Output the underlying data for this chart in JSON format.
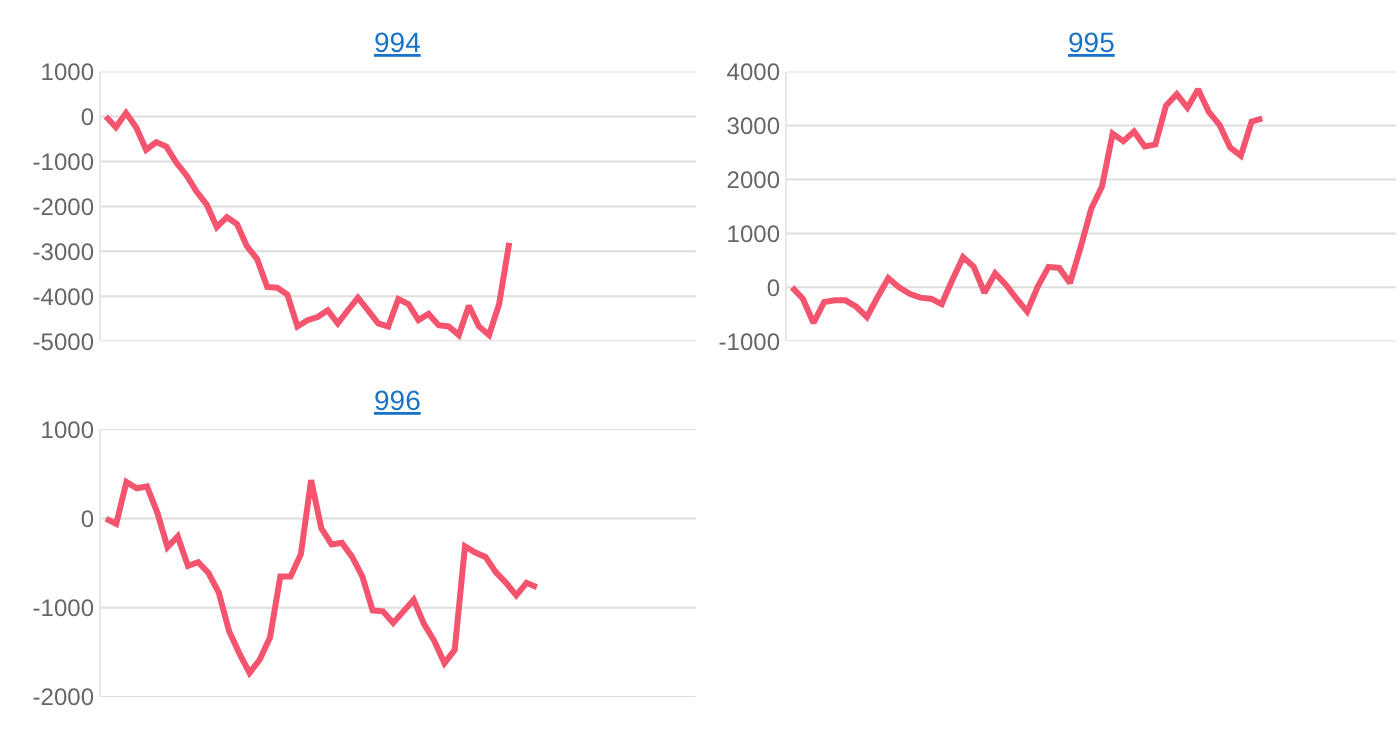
{
  "chart_data": [
    {
      "type": "line",
      "title": "994",
      "categories": [
        null,
        null,
        null,
        null,
        null,
        null,
        null,
        null,
        null,
        null,
        null,
        null,
        null,
        null,
        null,
        null,
        null,
        null,
        null,
        null,
        null,
        null,
        null,
        null,
        null,
        null,
        null,
        null,
        null,
        null,
        null,
        null,
        null,
        null,
        null,
        null,
        null,
        null,
        null,
        null,
        null,
        null,
        null,
        null,
        null,
        null,
        null,
        null,
        null,
        null,
        null,
        null,
        null,
        null,
        null,
        null,
        null,
        null,
        null
      ],
      "series": [
        {
          "color": "#f5546e",
          "values": [
            0,
            -240,
            80,
            -240,
            -740,
            -570,
            -670,
            -1030,
            -1310,
            -1670,
            -1960,
            -2460,
            -2240,
            -2390,
            -2890,
            -3170,
            -3790,
            -3810,
            -3960,
            -4670,
            -4530,
            -4460,
            -4310,
            -4600,
            -4310,
            -4030,
            -4310,
            -4600,
            -4670,
            -4060,
            -4170,
            -4530,
            -4390,
            -4640,
            -4670,
            -4860,
            -4210,
            -4670,
            -4860,
            -4170,
            -2810,
            null,
            null,
            null,
            null,
            null,
            null,
            null,
            null,
            null,
            null,
            null,
            null,
            null,
            null,
            null,
            null,
            null,
            null
          ]
        }
      ],
      "ylim": [
        -5000,
        1000
      ],
      "yticks": [
        -5000,
        -4000,
        -3000,
        -2000,
        -1000,
        0,
        1000
      ],
      "grid": "y",
      "marker": "none",
      "line_style": "solid",
      "tick_labels": "y"
    },
    {
      "type": "line",
      "title": "995",
      "categories": [
        null,
        null,
        null,
        null,
        null,
        null,
        null,
        null,
        null,
        null,
        null,
        null,
        null,
        null,
        null,
        null,
        null,
        null,
        null,
        null,
        null,
        null,
        null,
        null,
        null,
        null,
        null,
        null,
        null,
        null,
        null,
        null,
        null,
        null,
        null,
        null,
        null,
        null,
        null,
        null,
        null,
        null,
        null,
        null,
        null,
        null,
        null,
        null,
        null,
        null,
        null,
        null,
        null,
        null,
        null,
        null,
        null
      ],
      "series": [
        {
          "color": "#f5546e",
          "values": [
            0,
            -210,
            -660,
            -270,
            -240,
            -240,
            -360,
            -550,
            -180,
            170,
            0,
            -120,
            -190,
            -210,
            -310,
            140,
            560,
            380,
            -100,
            260,
            50,
            -210,
            -450,
            20,
            380,
            360,
            80,
            740,
            1460,
            1870,
            2850,
            2710,
            2890,
            2610,
            2650,
            3370,
            3580,
            3330,
            3670,
            3250,
            3010,
            2590,
            2440,
            3070,
            3130,
            null,
            null,
            null,
            null,
            null,
            null,
            null,
            null,
            null,
            null,
            null,
            null
          ]
        }
      ],
      "ylim": [
        -1000,
        4000
      ],
      "yticks": [
        -1000,
        0,
        1000,
        2000,
        3000,
        4000
      ],
      "grid": "y",
      "marker": "none",
      "line_style": "solid",
      "tick_labels": "y"
    },
    {
      "type": "line",
      "title": "996",
      "categories": [
        null,
        null,
        null,
        null,
        null,
        null,
        null,
        null,
        null,
        null,
        null,
        null,
        null,
        null,
        null,
        null,
        null,
        null,
        null,
        null,
        null,
        null,
        null,
        null,
        null,
        null,
        null,
        null,
        null,
        null,
        null,
        null,
        null,
        null,
        null,
        null,
        null,
        null,
        null,
        null,
        null,
        null,
        null,
        null,
        null,
        null,
        null,
        null,
        null,
        null,
        null,
        null,
        null,
        null,
        null,
        null,
        null,
        null
      ],
      "series": [
        {
          "color": "#f5546e",
          "values": [
            0,
            -60,
            410,
            340,
            360,
            70,
            -320,
            -200,
            -530,
            -490,
            -610,
            -830,
            -1260,
            -1510,
            -1730,
            -1580,
            -1330,
            -650,
            -650,
            -400,
            430,
            -110,
            -290,
            -270,
            -430,
            -650,
            -1030,
            -1040,
            -1170,
            -1040,
            -910,
            -1180,
            -1370,
            -1620,
            -1470,
            -310,
            -380,
            -430,
            -600,
            -720,
            -860,
            -720,
            -770,
            null,
            null,
            null,
            null,
            null,
            null,
            null,
            null,
            null,
            null,
            null,
            null,
            null,
            null,
            null
          ]
        }
      ],
      "ylim": [
        -2000,
        1000
      ],
      "yticks": [
        -2000,
        -1000,
        0,
        1000
      ],
      "grid": "y",
      "marker": "none",
      "line_style": "solid",
      "tick_labels": "y"
    }
  ]
}
